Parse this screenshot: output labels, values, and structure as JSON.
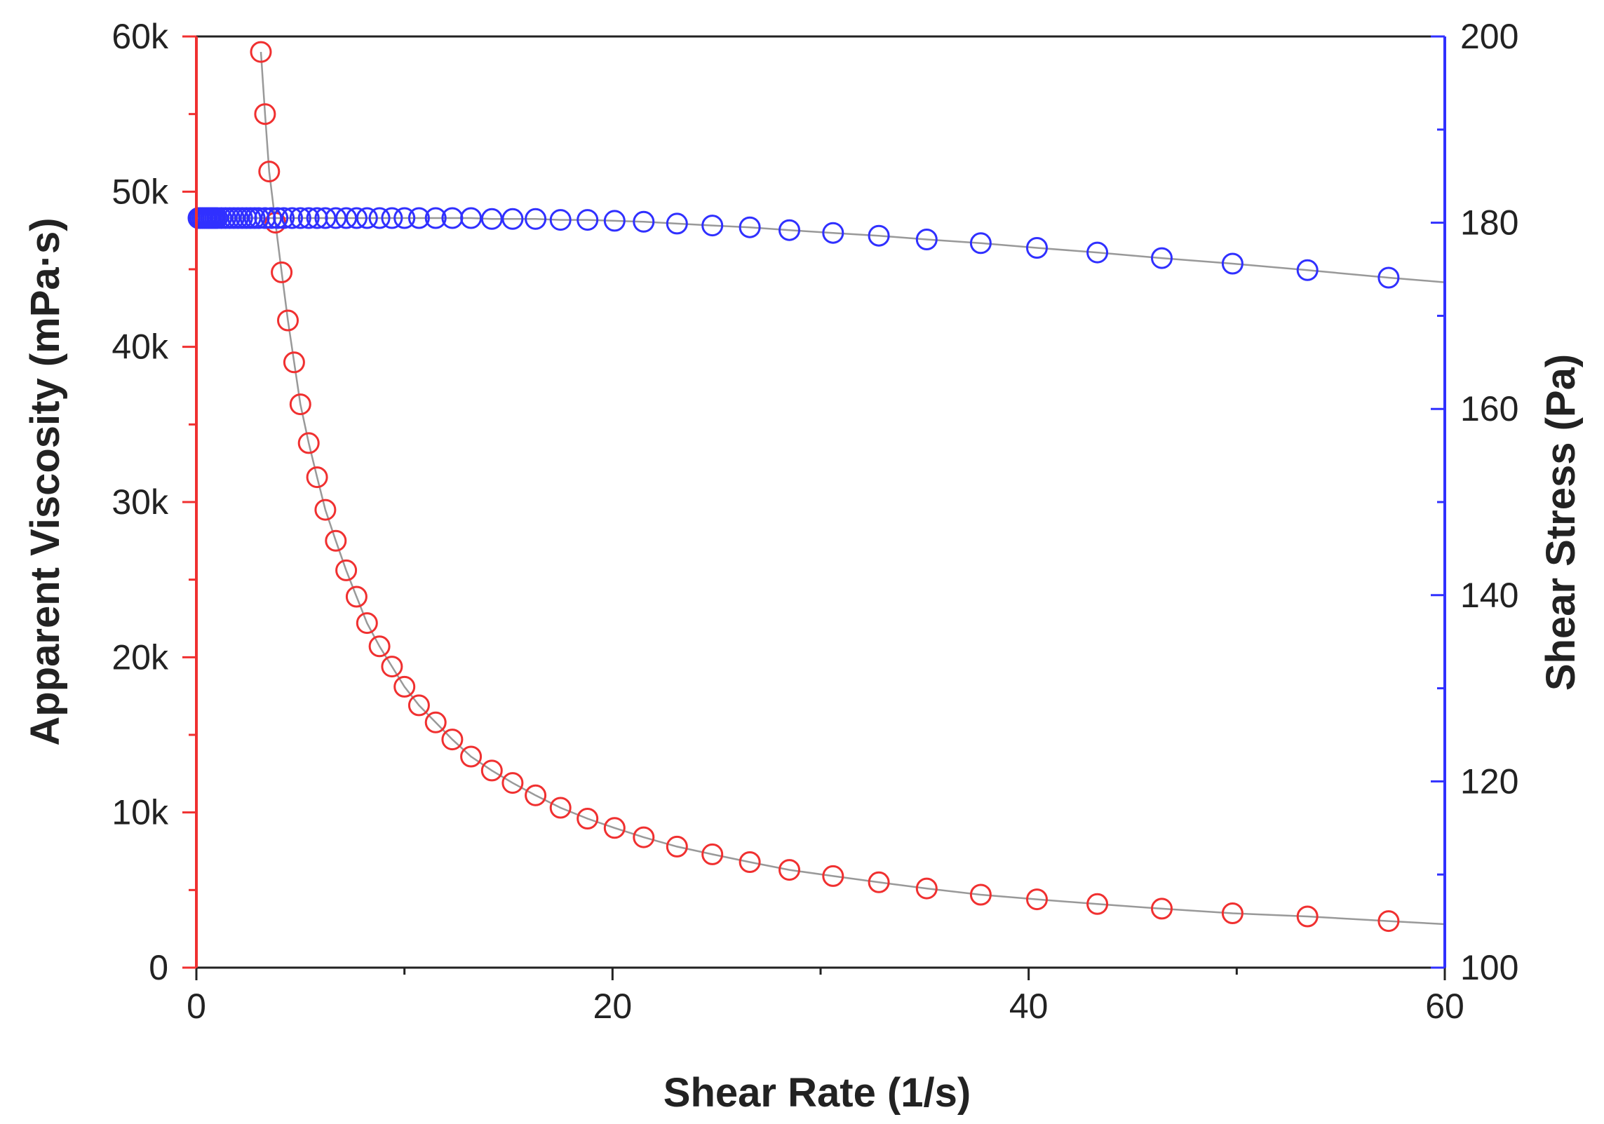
{
  "chart_data": {
    "type": "scatter",
    "title": "",
    "xlabel": "Shear Rate (1/s)",
    "ylabel": "Apparent Viscosity (mPa·s)",
    "y2label": "Shear Stress (Pa)",
    "xlim": [
      0,
      60
    ],
    "ylim": [
      0,
      60000
    ],
    "y2lim": [
      100,
      200
    ],
    "grid": false,
    "legend": "none",
    "xticks": [
      0,
      20,
      40,
      60
    ],
    "xtick_labels": [
      "0",
      "20",
      "40",
      "60"
    ],
    "yticks": [
      0,
      10000,
      20000,
      30000,
      40000,
      50000,
      60000
    ],
    "ytick_labels": [
      "0",
      "10k",
      "20k",
      "30k",
      "40k",
      "50k",
      "60k"
    ],
    "y2ticks": [
      100,
      120,
      140,
      160,
      180,
      200
    ],
    "y2tick_labels": [
      "100",
      "120",
      "140",
      "160",
      "180",
      "200"
    ],
    "colors": {
      "viscosity": "#f03030",
      "stress": "#3030ff",
      "connector": "#999999",
      "axis": "#222222"
    },
    "series": [
      {
        "name": "Apparent Viscosity",
        "axis": "left",
        "color": "#f03030",
        "marker": "open-circle",
        "x": [
          3.1,
          3.3,
          3.5,
          3.8,
          4.1,
          4.4,
          4.7,
          5.0,
          5.4,
          5.8,
          6.2,
          6.7,
          7.2,
          7.7,
          8.2,
          8.8,
          9.4,
          10.0,
          10.7,
          11.5,
          12.3,
          13.2,
          14.2,
          15.2,
          16.3,
          17.5,
          18.8,
          20.1,
          21.5,
          23.1,
          24.8,
          26.6,
          28.5,
          30.6,
          32.8,
          35.1,
          37.7,
          40.4,
          43.3,
          46.4,
          49.8,
          53.4,
          57.3,
          60
        ],
        "values": [
          59000,
          55000,
          51300,
          48000,
          44800,
          41700,
          39000,
          36300,
          33800,
          31600,
          29500,
          27500,
          25600,
          23900,
          22200,
          20700,
          19400,
          18100,
          16900,
          15800,
          14700,
          13600,
          12700,
          11900,
          11100,
          10300,
          9600,
          9000,
          8400,
          7800,
          7300,
          6800,
          6300,
          5900,
          5500,
          5100,
          4700,
          4400,
          4100,
          3800,
          3500,
          3300,
          3000,
          2800
        ]
      },
      {
        "name": "Shear Stress",
        "axis": "right",
        "color": "#3030ff",
        "marker": "open-circle",
        "x": [
          0.1,
          0.2,
          0.3,
          0.4,
          0.5,
          0.6,
          0.7,
          0.8,
          0.9,
          1.0,
          1.2,
          1.4,
          1.6,
          1.8,
          2.0,
          2.2,
          2.4,
          2.6,
          2.8,
          3.0,
          3.3,
          3.6,
          3.9,
          4.2,
          4.6,
          5.0,
          5.4,
          5.8,
          6.2,
          6.7,
          7.2,
          7.7,
          8.2,
          8.8,
          9.4,
          10.0,
          10.7,
          11.5,
          12.3,
          13.2,
          14.2,
          15.2,
          16.3,
          17.5,
          18.8,
          20.1,
          21.5,
          23.1,
          24.8,
          26.6,
          28.5,
          30.6,
          32.8,
          35.1,
          37.7,
          40.4,
          43.3,
          46.4,
          49.8,
          53.4,
          57.3,
          60
        ],
        "values": [
          180.5,
          180.5,
          180.5,
          180.5,
          180.5,
          180.5,
          180.5,
          180.5,
          180.5,
          180.5,
          180.5,
          180.5,
          180.5,
          180.5,
          180.5,
          180.5,
          180.5,
          180.5,
          180.5,
          180.5,
          180.5,
          180.5,
          180.5,
          180.5,
          180.5,
          180.5,
          180.5,
          180.5,
          180.5,
          180.5,
          180.5,
          180.5,
          180.5,
          180.5,
          180.5,
          180.5,
          180.5,
          180.5,
          180.5,
          180.5,
          180.4,
          180.4,
          180.4,
          180.3,
          180.3,
          180.2,
          180.1,
          179.9,
          179.7,
          179.5,
          179.2,
          178.9,
          178.6,
          178.2,
          177.8,
          177.3,
          176.8,
          176.2,
          175.6,
          174.9,
          174.1,
          173.6
        ]
      }
    ]
  }
}
